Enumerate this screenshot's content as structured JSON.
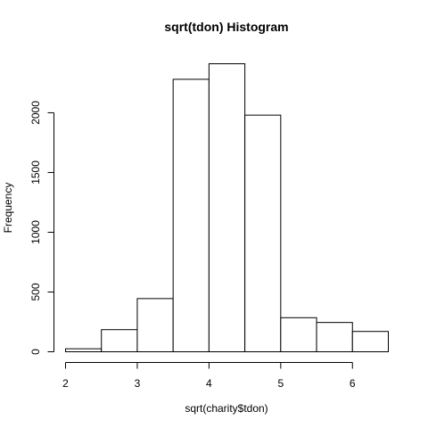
{
  "chart_data": {
    "type": "bar",
    "title": "sqrt(tdon) Histogram",
    "xlabel": "sqrt(charity$tdon)",
    "ylabel": "Frequency",
    "bins": [
      {
        "x0": 2.0,
        "x1": 2.5,
        "count": 25
      },
      {
        "x0": 2.5,
        "x1": 3.0,
        "count": 185
      },
      {
        "x0": 3.0,
        "x1": 3.5,
        "count": 445
      },
      {
        "x0": 3.5,
        "x1": 4.0,
        "count": 2280
      },
      {
        "x0": 4.0,
        "x1": 4.5,
        "count": 2410
      },
      {
        "x0": 4.5,
        "x1": 5.0,
        "count": 1980
      },
      {
        "x0": 5.0,
        "x1": 5.5,
        "count": 285
      },
      {
        "x0": 5.5,
        "x1": 6.0,
        "count": 245
      },
      {
        "x0": 6.0,
        "x1": 6.5,
        "count": 170
      }
    ],
    "xlim": [
      2.0,
      6.5
    ],
    "ylim": [
      0,
      2410
    ],
    "xticks": [
      "2",
      "3",
      "4",
      "5",
      "6"
    ],
    "yticks": [
      "0",
      "500",
      "1000",
      "1500",
      "2000"
    ],
    "grid": false,
    "legend": "none"
  }
}
